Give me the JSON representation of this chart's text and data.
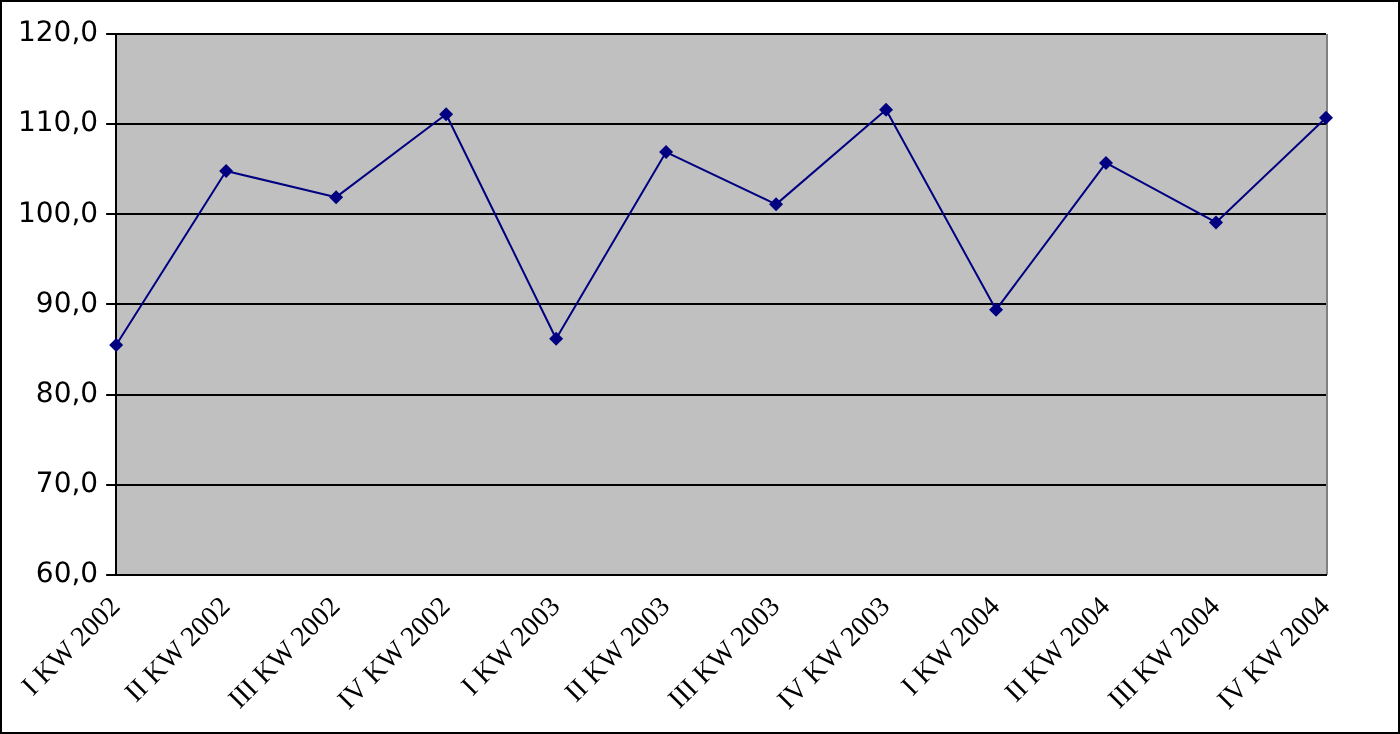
{
  "chart_data": {
    "type": "line",
    "categories": [
      "I KW 2002",
      "II KW 2002",
      "III KW 2002",
      "IV KW 2002",
      "I KW 2003",
      "II KW 2003",
      "III KW 2003",
      "IV KW 2003",
      "I KW 2004",
      "II KW 2004",
      "III KW 2004",
      "IV KW 2004"
    ],
    "series": [
      {
        "color": "#000080",
        "values": [
          85.5,
          104.8,
          101.9,
          111.1,
          86.2,
          106.9,
          101.1,
          111.6,
          89.4,
          105.7,
          99.1,
          110.7
        ]
      }
    ],
    "ylim": [
      60,
      120
    ],
    "yticks": [
      {
        "value": 60,
        "label": "60,0"
      },
      {
        "value": 70,
        "label": "70,0"
      },
      {
        "value": 80,
        "label": "80,0"
      },
      {
        "value": 90,
        "label": "90,0"
      },
      {
        "value": 100,
        "label": "100,0"
      },
      {
        "value": 110,
        "label": "110,0"
      },
      {
        "value": 120,
        "label": "120,0"
      }
    ],
    "grid": "y",
    "legend": false,
    "marker": "diamond",
    "line_style": "solid"
  }
}
